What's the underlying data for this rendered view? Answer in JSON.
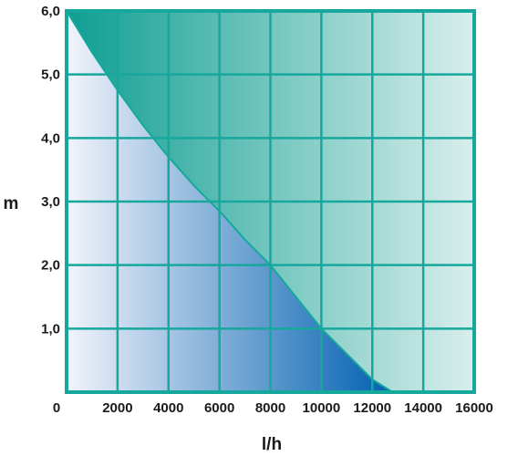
{
  "chart_data": {
    "type": "area",
    "xlabel": "l/h",
    "ylabel": "m",
    "xlim": [
      0,
      16000
    ],
    "ylim": [
      0,
      6.0
    ],
    "x_ticks": [
      2000,
      4000,
      6000,
      8000,
      10000,
      12000,
      14000,
      16000
    ],
    "x_tick_labels": [
      "2000",
      "4000",
      "6000",
      "8000",
      "10000",
      "12000",
      "14000",
      "16000"
    ],
    "y_ticks": [
      1.0,
      2.0,
      3.0,
      4.0,
      5.0,
      6.0
    ],
    "y_tick_labels": [
      "1,0",
      "2,0",
      "3,0",
      "4,0",
      "5,0",
      "6,0"
    ],
    "origin_label": "0",
    "grid": true,
    "series": [
      {
        "x": [
          0,
          1000,
          2000,
          3000,
          4000,
          5000,
          6000,
          7000,
          8000,
          9000,
          10000,
          11000,
          12000,
          12800
        ],
        "y": [
          6.0,
          5.35,
          4.75,
          4.2,
          3.7,
          3.25,
          2.85,
          2.4,
          2.0,
          1.5,
          1.0,
          0.6,
          0.2,
          0.0
        ]
      }
    ],
    "colors": {
      "frame": "#16a89c",
      "above_curve_dark": "#0e9e92",
      "above_curve_light": "#d9eeec",
      "below_curve_dark": "#0060b0",
      "below_curve_light": "#f2f4fb",
      "grid": "#16a89c"
    }
  }
}
